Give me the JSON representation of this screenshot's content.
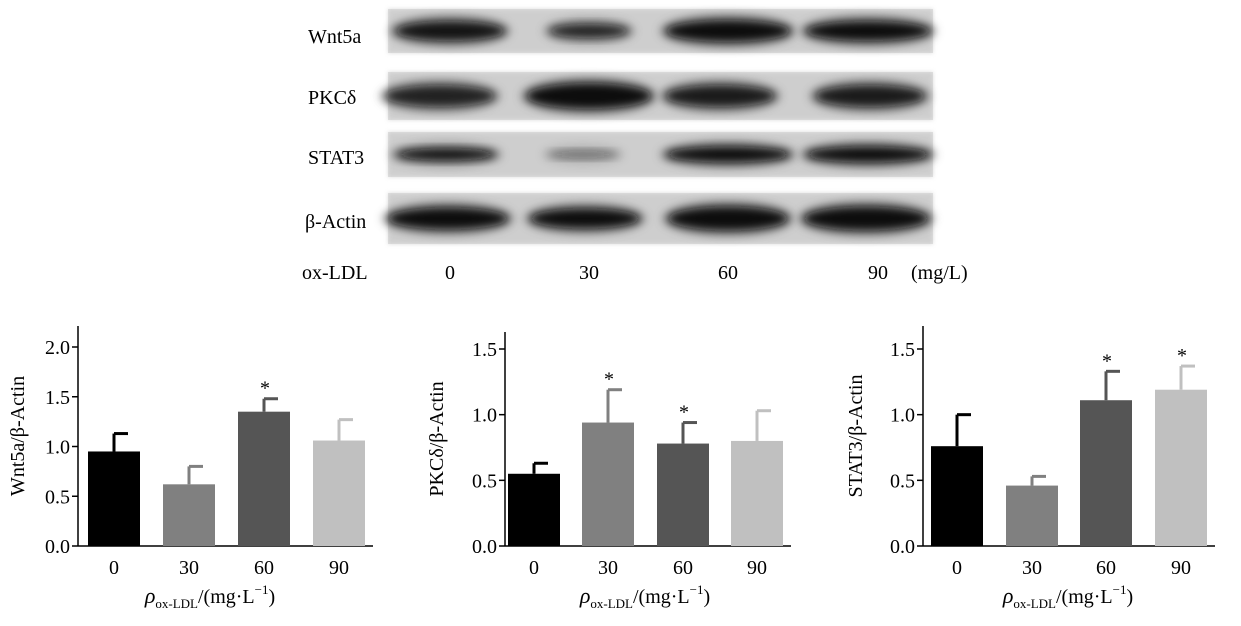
{
  "blot": {
    "rows": [
      "Wnt5a",
      "PKCδ",
      "STAT3",
      "β-Actin"
    ],
    "treatment_label": "ox-LDL",
    "doses": [
      "0",
      "30",
      "60",
      "90"
    ],
    "unit": "(mg/L)"
  },
  "colors": {
    "bars": [
      "#000000",
      "#808080",
      "#555555",
      "#c0c0c0"
    ],
    "axis": "#000000"
  },
  "chart_data": [
    {
      "type": "bar",
      "categories": [
        "0",
        "30",
        "60",
        "90"
      ],
      "values": [
        0.95,
        0.62,
        1.35,
        1.06
      ],
      "errors": [
        0.18,
        0.18,
        0.13,
        0.21
      ],
      "significance": [
        "",
        "",
        "*",
        ""
      ],
      "ylabel": "Wnt5a/β-Actin",
      "xlabel_symbol": "ρ",
      "xlabel_sub": "ox-LDL",
      "xlabel_unit": "/(mg·L",
      "xlabel_exp": "−1",
      "xlabel_close": ")",
      "ylim": [
        0,
        2.0
      ],
      "yticks": [
        "0.0",
        "0.5",
        "1.0",
        "1.5",
        "2.0"
      ]
    },
    {
      "type": "bar",
      "categories": [
        "0",
        "30",
        "60",
        "90"
      ],
      "values": [
        0.55,
        0.94,
        0.78,
        0.8
      ],
      "errors": [
        0.08,
        0.25,
        0.16,
        0.23
      ],
      "significance": [
        "",
        "*",
        "*",
        ""
      ],
      "ylabel": "PKCδ/β-Actin",
      "xlabel_symbol": "ρ",
      "xlabel_sub": "ox-LDL",
      "xlabel_unit": "/(mg·L",
      "xlabel_exp": "−1",
      "xlabel_close": ")",
      "ylim": [
        0,
        1.5
      ],
      "yticks": [
        "0.0",
        "0.5",
        "1.0",
        "1.5"
      ]
    },
    {
      "type": "bar",
      "categories": [
        "0",
        "30",
        "60",
        "90"
      ],
      "values": [
        0.76,
        0.46,
        1.11,
        1.19
      ],
      "errors": [
        0.24,
        0.07,
        0.22,
        0.18
      ],
      "significance": [
        "",
        "",
        "*",
        "*"
      ],
      "ylabel": "STAT3/β-Actin",
      "xlabel_symbol": "ρ",
      "xlabel_sub": "ox-LDL",
      "xlabel_unit": "/(mg·L",
      "xlabel_exp": "−1",
      "xlabel_close": ")",
      "ylim": [
        0,
        1.5
      ],
      "yticks": [
        "0.0",
        "0.5",
        "1.0",
        "1.5"
      ]
    }
  ]
}
